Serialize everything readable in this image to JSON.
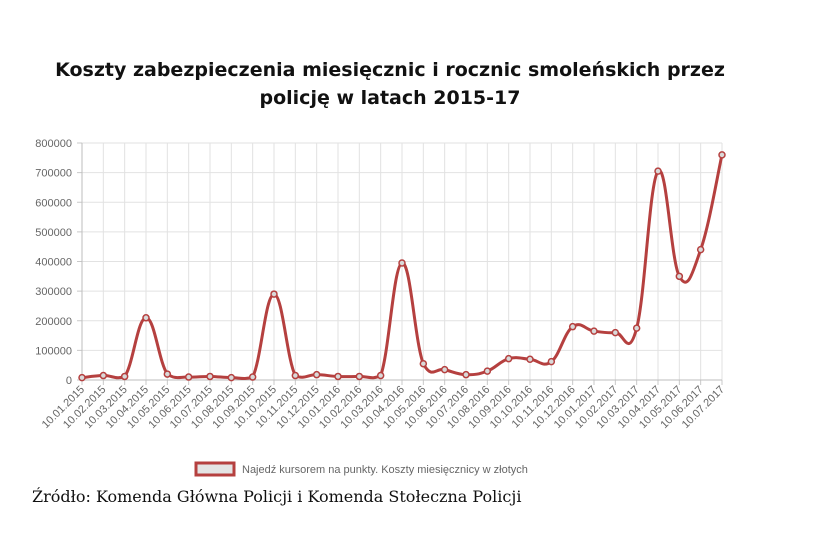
{
  "title": "Koszty zabezpieczenia miesięcznic i rocznic smoleńskich przez policję w latach 2015-17",
  "source": "Źródło: Komenda Główna Policji i Komenda Stołeczna Policji",
  "chart_data": {
    "type": "line",
    "title": "Koszty zabezpieczenia miesięcznic i rocznic smoleńskich przez policję w latach 2015-17",
    "categories": [
      "10.01.2015",
      "10.02.2015",
      "10.03.2015",
      "10.04.2015",
      "10.05.2015",
      "10.06.2015",
      "10.07.2015",
      "10.08.2015",
      "10.09.2015",
      "10.10.2015",
      "10.11.2015",
      "10.12.2015",
      "10.01.2016",
      "10.02.2016",
      "10.03.2016",
      "10.04.2016",
      "10.05.2016",
      "10.06.2016",
      "10.07.2016",
      "10.08.2016",
      "10.09.2016",
      "10.10.2016",
      "10.11.2016",
      "10.12.2016",
      "10.01.2017",
      "10.02.2017",
      "10.03.2017",
      "10.04.2017",
      "10.05.2017",
      "10.06.2017",
      "10.07.2017"
    ],
    "series": [
      {
        "name": "Najedź kursorem na punkty. Koszty miesięcznicy w złotych",
        "color": "#b5403f",
        "values": [
          8000,
          15000,
          12000,
          210000,
          20000,
          10000,
          12000,
          8000,
          10000,
          290000,
          15000,
          18000,
          12000,
          12000,
          15000,
          395000,
          55000,
          35000,
          18000,
          30000,
          72000,
          70000,
          62000,
          180000,
          165000,
          160000,
          175000,
          705000,
          350000,
          440000,
          760000
        ]
      }
    ],
    "ylim": [
      0,
      800000
    ],
    "yticks": [
      "0",
      "100000",
      "200000",
      "300000",
      "400000",
      "500000",
      "600000",
      "700000",
      "800000"
    ],
    "grid": true,
    "legend_position": "bottom"
  }
}
